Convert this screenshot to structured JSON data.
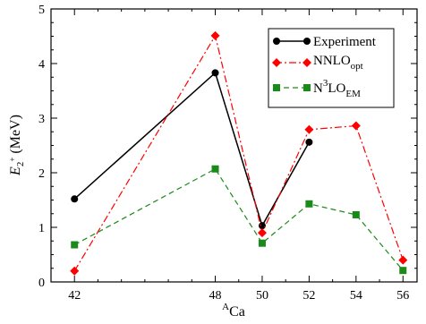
{
  "chart_data": {
    "type": "line",
    "xlabel": {
      "sup": "A",
      "main": "Ca"
    },
    "ylabel": {
      "main": "E",
      "sub": "2",
      "subsup": "+",
      "unit": " (MeV)"
    },
    "xticks": [
      42,
      48,
      50,
      52,
      54,
      56
    ],
    "yticks": [
      0,
      1,
      2,
      3,
      4,
      5
    ],
    "xlim": [
      41,
      56.6
    ],
    "ylim": [
      0,
      5
    ],
    "grid": false,
    "legend_position": "top-right",
    "series": [
      {
        "name": "Experiment",
        "legend": {
          "main": "Experiment",
          "sup": "",
          "sub": ""
        },
        "color": "#000000",
        "marker": "circle",
        "dash": "solid",
        "points": [
          [
            42,
            1.52
          ],
          [
            48,
            3.83
          ],
          [
            50,
            1.03
          ],
          [
            52,
            2.56
          ]
        ]
      },
      {
        "name": "NNLOopt",
        "legend": {
          "main": "NNLO",
          "sup": "",
          "sub": "opt"
        },
        "color": "#ff0000",
        "marker": "diamond",
        "dash": "dashdot",
        "points": [
          [
            42,
            0.2
          ],
          [
            48,
            4.51
          ],
          [
            50,
            0.9
          ],
          [
            52,
            2.79
          ],
          [
            54,
            2.86
          ],
          [
            56,
            0.4
          ]
        ]
      },
      {
        "name": "N3LOEM",
        "legend": {
          "main": "N",
          "sup": "3",
          "main2": "LO",
          "sub": "EM"
        },
        "color": "#1a8a1a",
        "marker": "square",
        "dash": "dashed",
        "points": [
          [
            42,
            0.68
          ],
          [
            48,
            2.07
          ],
          [
            50,
            0.71
          ],
          [
            52,
            1.43
          ],
          [
            54,
            1.23
          ],
          [
            56,
            0.21
          ]
        ]
      }
    ]
  }
}
